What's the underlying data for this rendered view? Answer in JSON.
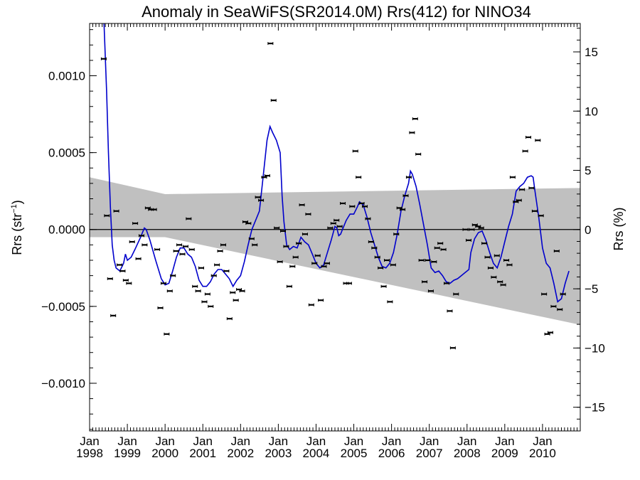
{
  "chart_data": {
    "type": "scatter",
    "title": "Anomaly in SeaWiFS(SR2014.0M) Rrs(412) for NINO34",
    "ylabel": "Rrs (str",
    "ylabel_sup": "−1",
    "ylabel_suffix": ")",
    "y2label": "Rrs (%)",
    "xlim": [
      1998.0,
      2011.0
    ],
    "ylim": [
      -0.00131,
      0.00134
    ],
    "y2lim": [
      -17.0,
      17.4
    ],
    "x_ticks": [
      {
        "x": 1998,
        "line1": "Jan",
        "line2": "1998"
      },
      {
        "x": 1999,
        "line1": "Jan",
        "line2": "1999"
      },
      {
        "x": 2000,
        "line1": "Jan",
        "line2": "2000"
      },
      {
        "x": 2001,
        "line1": "Jan",
        "line2": "2001"
      },
      {
        "x": 2002,
        "line1": "Jan",
        "line2": "2002"
      },
      {
        "x": 2003,
        "line1": "Jan",
        "line2": "2003"
      },
      {
        "x": 2004,
        "line1": "Jan",
        "line2": "2004"
      },
      {
        "x": 2005,
        "line1": "Jan",
        "line2": "2005"
      },
      {
        "x": 2006,
        "line1": "Jan",
        "line2": "2006"
      },
      {
        "x": 2007,
        "line1": "Jan",
        "line2": "2007"
      },
      {
        "x": 2008,
        "line1": "Jan",
        "line2": "2008"
      },
      {
        "x": 2009,
        "line1": "Jan",
        "line2": "2009"
      },
      {
        "x": 2010,
        "line1": "Jan",
        "line2": "2010"
      }
    ],
    "y_ticks": [
      {
        "v": 0.001,
        "label": "0.0010"
      },
      {
        "v": 0.0005,
        "label": "0.0005"
      },
      {
        "v": 0.0,
        "label": "0.0000"
      },
      {
        "v": -0.0005,
        "label": "−0.0005"
      },
      {
        "v": -0.001,
        "label": "−0.0010"
      }
    ],
    "y2_ticks": [
      {
        "v": 15,
        "label": "15"
      },
      {
        "v": 10,
        "label": "10"
      },
      {
        "v": 5,
        "label": "5"
      },
      {
        "v": 0,
        "label": "0"
      },
      {
        "v": -5,
        "label": "−5"
      },
      {
        "v": -10,
        "label": "−10"
      },
      {
        "v": -15,
        "label": "−15"
      }
    ],
    "zero_line": 0.0,
    "band": {
      "color": "#c0c0c0",
      "upper": [
        [
          1998.0,
          0.00034
        ],
        [
          2000.0,
          0.00023
        ],
        [
          2011.0,
          0.00027
        ]
      ],
      "lower": [
        [
          1998.0,
          -5e-05
        ],
        [
          2000.0,
          -5e-05
        ],
        [
          2011.0,
          -0.00062
        ]
      ]
    },
    "colors": {
      "smooth_line": "#0000cc",
      "points": "#000000"
    },
    "points": [
      [
        1998.375,
        0.00111
      ],
      [
        1998.458,
        9e-05
      ],
      [
        1998.542,
        -0.00032
      ],
      [
        1998.625,
        -0.00056
      ],
      [
        1998.708,
        0.00012
      ],
      [
        1998.792,
        -0.00023
      ],
      [
        1998.875,
        -0.00027
      ],
      [
        1998.958,
        -0.00033
      ],
      [
        1999.042,
        -0.00035
      ],
      [
        1999.125,
        -8e-05
      ],
      [
        1999.208,
        4e-05
      ],
      [
        1999.292,
        -0.00019
      ],
      [
        1999.375,
        -4e-05
      ],
      [
        1999.458,
        -0.0001
      ],
      [
        1999.542,
        0.00014
      ],
      [
        1999.625,
        0.00013
      ],
      [
        1999.708,
        0.00013
      ],
      [
        1999.792,
        -0.00013
      ],
      [
        1999.875,
        -0.00051
      ],
      [
        1999.958,
        -0.00035
      ],
      [
        2000.042,
        -0.00068
      ],
      [
        2000.125,
        -0.0004
      ],
      [
        2000.208,
        -0.0003
      ],
      [
        2000.292,
        -0.00014
      ],
      [
        2000.375,
        -0.0001
      ],
      [
        2000.458,
        -0.00016
      ],
      [
        2000.542,
        -0.00011
      ],
      [
        2000.625,
        7e-05
      ],
      [
        2000.708,
        -0.00013
      ],
      [
        2000.792,
        -0.00037
      ],
      [
        2000.875,
        -0.0004
      ],
      [
        2000.958,
        -0.00025
      ],
      [
        2001.042,
        -0.00047
      ],
      [
        2001.125,
        -0.00042
      ],
      [
        2001.208,
        -0.0005
      ],
      [
        2001.292,
        -0.0003
      ],
      [
        2001.375,
        -0.00023
      ],
      [
        2001.458,
        -0.00014
      ],
      [
        2001.542,
        -0.0001
      ],
      [
        2001.625,
        -0.00027
      ],
      [
        2001.708,
        -0.00058
      ],
      [
        2001.792,
        -0.00041
      ],
      [
        2001.875,
        -0.00046
      ],
      [
        2001.958,
        -0.00039
      ],
      [
        2002.042,
        -0.0004
      ],
      [
        2002.125,
        5e-05
      ],
      [
        2002.208,
        4e-05
      ],
      [
        2002.292,
        -6e-05
      ],
      [
        2002.375,
        -0.0001
      ],
      [
        2002.458,
        0.00021
      ],
      [
        2002.542,
        0.00019
      ],
      [
        2002.625,
        0.00034
      ],
      [
        2002.708,
        0.00035
      ],
      [
        2002.792,
        0.00121
      ],
      [
        2002.875,
        0.00084
      ],
      [
        2002.958,
        1e-05
      ],
      [
        2003.042,
        -0.00021
      ],
      [
        2003.125,
        -1e-05
      ],
      [
        2003.208,
        -0.00011
      ],
      [
        2003.292,
        -0.00037
      ],
      [
        2003.375,
        -0.00024
      ],
      [
        2003.458,
        -0.00018
      ],
      [
        2003.542,
        -9e-05
      ],
      [
        2003.625,
        0.00016
      ],
      [
        2003.708,
        -3e-05
      ],
      [
        2003.792,
        0.0001
      ],
      [
        2003.875,
        -0.00049
      ],
      [
        2003.958,
        -0.00022
      ],
      [
        2004.042,
        -0.00017
      ],
      [
        2004.125,
        -0.00046
      ],
      [
        2004.208,
        -0.00024
      ],
      [
        2004.292,
        -0.00022
      ],
      [
        2004.375,
        1e-05
      ],
      [
        2004.458,
        4e-05
      ],
      [
        2004.542,
        6e-05
      ],
      [
        2004.625,
        2e-05
      ],
      [
        2004.708,
        0.00017
      ],
      [
        2004.792,
        -0.00035
      ],
      [
        2004.875,
        -0.00035
      ],
      [
        2004.958,
        0.00015
      ],
      [
        2005.042,
        0.00051
      ],
      [
        2005.125,
        0.00034
      ],
      [
        2005.208,
        0.00017
      ],
      [
        2005.292,
        0.00015
      ],
      [
        2005.375,
        7e-05
      ],
      [
        2005.458,
        -8e-05
      ],
      [
        2005.542,
        -0.00012
      ],
      [
        2005.625,
        -0.00018
      ],
      [
        2005.708,
        -0.00025
      ],
      [
        2005.792,
        -0.00037
      ],
      [
        2005.875,
        -0.0002
      ],
      [
        2005.958,
        -0.00047
      ],
      [
        2006.042,
        -0.00023
      ],
      [
        2006.125,
        -3e-05
      ],
      [
        2006.208,
        0.00014
      ],
      [
        2006.292,
        0.00013
      ],
      [
        2006.375,
        0.00022
      ],
      [
        2006.458,
        0.00034
      ],
      [
        2006.542,
        0.00063
      ],
      [
        2006.625,
        0.00072
      ],
      [
        2006.708,
        0.00049
      ],
      [
        2006.792,
        -0.0002
      ],
      [
        2006.875,
        -0.00034
      ],
      [
        2006.958,
        -0.0002
      ],
      [
        2007.042,
        -0.0004
      ],
      [
        2007.125,
        -0.00021
      ],
      [
        2007.208,
        -0.00012
      ],
      [
        2007.292,
        -9e-05
      ],
      [
        2007.375,
        -0.00013
      ],
      [
        2007.458,
        -0.00035
      ],
      [
        2007.542,
        -0.00053
      ],
      [
        2007.625,
        -0.00077
      ],
      [
        2007.708,
        -0.00042
      ],
      [
        2007.958,
        0.0
      ],
      [
        2008.042,
        -7e-05
      ],
      [
        2008.125,
        0.0
      ],
      [
        2008.208,
        3e-05
      ],
      [
        2008.292,
        2e-05
      ],
      [
        2008.375,
        1e-05
      ],
      [
        2008.458,
        -9e-05
      ],
      [
        2008.542,
        -0.00018
      ],
      [
        2008.625,
        -0.00025
      ],
      [
        2008.708,
        -0.00031
      ],
      [
        2008.792,
        -0.00017
      ],
      [
        2008.875,
        -0.00034
      ],
      [
        2008.958,
        -0.00036
      ],
      [
        2009.042,
        -0.0002
      ],
      [
        2009.125,
        -0.00023
      ],
      [
        2009.208,
        0.00034
      ],
      [
        2009.292,
        0.00018
      ],
      [
        2009.375,
        0.00019
      ],
      [
        2009.458,
        0.00026
      ],
      [
        2009.542,
        0.00051
      ],
      [
        2009.625,
        0.0006
      ],
      [
        2009.708,
        0.00027
      ],
      [
        2009.792,
        0.00012
      ],
      [
        2009.875,
        0.00058
      ],
      [
        2009.958,
        9e-05
      ],
      [
        2010.042,
        -0.00042
      ],
      [
        2010.125,
        -0.00068
      ],
      [
        2010.208,
        -0.00067
      ],
      [
        2010.292,
        -0.0005
      ],
      [
        2010.375,
        -0.00014
      ],
      [
        2010.458,
        -0.00052
      ],
      [
        2010.542,
        -0.00042
      ]
    ],
    "smooth_line": [
      [
        1998.38,
        0.00135
      ],
      [
        1998.45,
        0.0009
      ],
      [
        1998.5,
        0.0005
      ],
      [
        1998.55,
        0.00015
      ],
      [
        1998.6,
        -0.0001
      ],
      [
        1998.65,
        -0.0002
      ],
      [
        1998.7,
        -0.00025
      ],
      [
        1998.8,
        -0.00027
      ],
      [
        1998.9,
        -0.00022
      ],
      [
        1998.95,
        -0.00016
      ],
      [
        1999.0,
        -0.0002
      ],
      [
        1999.1,
        -0.00018
      ],
      [
        1999.2,
        -0.00013
      ],
      [
        1999.35,
        -5e-05
      ],
      [
        1999.45,
        1e-05
      ],
      [
        1999.5,
        0.0
      ],
      [
        1999.6,
        -7e-05
      ],
      [
        1999.75,
        -0.0002
      ],
      [
        1999.9,
        -0.00032
      ],
      [
        2000.0,
        -0.00036
      ],
      [
        2000.1,
        -0.00035
      ],
      [
        2000.2,
        -0.00027
      ],
      [
        2000.3,
        -0.00018
      ],
      [
        2000.4,
        -0.00012
      ],
      [
        2000.5,
        -0.00012
      ],
      [
        2000.6,
        -0.00016
      ],
      [
        2000.7,
        -0.00018
      ],
      [
        2000.8,
        -0.00024
      ],
      [
        2000.9,
        -0.00033
      ],
      [
        2001.0,
        -0.00037
      ],
      [
        2001.1,
        -0.00037
      ],
      [
        2001.2,
        -0.00034
      ],
      [
        2001.3,
        -0.00029
      ],
      [
        2001.4,
        -0.00026
      ],
      [
        2001.5,
        -0.00026
      ],
      [
        2001.6,
        -0.00029
      ],
      [
        2001.7,
        -0.00032
      ],
      [
        2001.8,
        -0.00037
      ],
      [
        2001.9,
        -0.00033
      ],
      [
        2002.0,
        -0.0003
      ],
      [
        2002.1,
        -0.00021
      ],
      [
        2002.2,
        -0.0001
      ],
      [
        2002.3,
        0.0
      ],
      [
        2002.4,
        6e-05
      ],
      [
        2002.5,
        0.00012
      ],
      [
        2002.6,
        0.00035
      ],
      [
        2002.7,
        0.00058
      ],
      [
        2002.78,
        0.00067
      ],
      [
        2002.85,
        0.00063
      ],
      [
        2002.95,
        0.00058
      ],
      [
        2003.05,
        0.0005
      ],
      [
        2003.1,
        0.00022
      ],
      [
        2003.15,
        5e-05
      ],
      [
        2003.22,
        -0.0001
      ],
      [
        2003.3,
        -0.00013
      ],
      [
        2003.4,
        -0.00011
      ],
      [
        2003.5,
        -0.00012
      ],
      [
        2003.6,
        -5e-05
      ],
      [
        2003.7,
        -8e-05
      ],
      [
        2003.8,
        -0.0001
      ],
      [
        2003.9,
        -0.00016
      ],
      [
        2004.0,
        -0.00022
      ],
      [
        2004.1,
        -0.00025
      ],
      [
        2004.2,
        -0.00023
      ],
      [
        2004.3,
        -0.00015
      ],
      [
        2004.4,
        -7e-05
      ],
      [
        2004.5,
        2e-05
      ],
      [
        2004.55,
        1e-05
      ],
      [
        2004.6,
        -4e-05
      ],
      [
        2004.65,
        -3e-05
      ],
      [
        2004.7,
        0.0
      ],
      [
        2004.8,
        6e-05
      ],
      [
        2004.9,
        0.0001
      ],
      [
        2005.0,
        0.0001
      ],
      [
        2005.1,
        0.00015
      ],
      [
        2005.15,
        0.00018
      ],
      [
        2005.25,
        0.00016
      ],
      [
        2005.35,
        8e-05
      ],
      [
        2005.45,
        -2e-05
      ],
      [
        2005.55,
        -0.0001
      ],
      [
        2005.65,
        -0.00018
      ],
      [
        2005.75,
        -0.00024
      ],
      [
        2005.85,
        -0.00025
      ],
      [
        2005.95,
        -0.00022
      ],
      [
        2006.05,
        -0.00015
      ],
      [
        2006.15,
        -3e-05
      ],
      [
        2006.25,
        0.00012
      ],
      [
        2006.35,
        0.00022
      ],
      [
        2006.45,
        0.0003
      ],
      [
        2006.5,
        0.00038
      ],
      [
        2006.55,
        0.00036
      ],
      [
        2006.65,
        0.00028
      ],
      [
        2006.75,
        0.00016
      ],
      [
        2006.85,
        3e-05
      ],
      [
        2006.95,
        -0.0001
      ],
      [
        2007.05,
        -0.00025
      ],
      [
        2007.15,
        -0.00028
      ],
      [
        2007.25,
        -0.00027
      ],
      [
        2007.35,
        -0.0003
      ],
      [
        2007.45,
        -0.00034
      ],
      [
        2007.55,
        -0.00035
      ],
      [
        2007.65,
        -0.00033
      ],
      [
        2007.75,
        -0.00032
      ],
      [
        2007.85,
        -0.0003
      ],
      [
        2007.95,
        -0.00028
      ],
      [
        2008.05,
        -0.00026
      ],
      [
        2008.1,
        -0.00015
      ],
      [
        2008.2,
        -6e-05
      ],
      [
        2008.3,
        -2e-05
      ],
      [
        2008.4,
        -1e-05
      ],
      [
        2008.5,
        -7e-05
      ],
      [
        2008.6,
        -0.00015
      ],
      [
        2008.7,
        -0.00022
      ],
      [
        2008.8,
        -0.00025
      ],
      [
        2008.9,
        -0.00018
      ],
      [
        2009.0,
        -8e-05
      ],
      [
        2009.1,
        2e-05
      ],
      [
        2009.2,
        0.0001
      ],
      [
        2009.3,
        0.00025
      ],
      [
        2009.4,
        0.00028
      ],
      [
        2009.5,
        0.0003
      ],
      [
        2009.6,
        0.00034
      ],
      [
        2009.7,
        0.00035
      ],
      [
        2009.75,
        0.00034
      ],
      [
        2009.8,
        0.00025
      ],
      [
        2009.9,
        8e-05
      ],
      [
        2010.0,
        -0.00012
      ],
      [
        2010.1,
        -0.00022
      ],
      [
        2010.2,
        -0.00025
      ],
      [
        2010.3,
        -0.00035
      ],
      [
        2010.4,
        -0.00047
      ],
      [
        2010.5,
        -0.00045
      ],
      [
        2010.6,
        -0.00035
      ],
      [
        2010.7,
        -0.00027
      ]
    ]
  }
}
